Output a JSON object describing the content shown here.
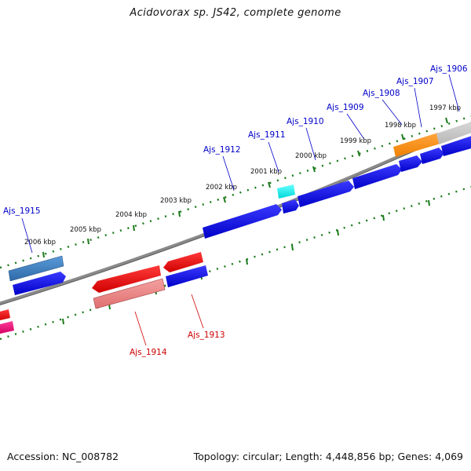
{
  "title": "Acidovorax sp. JS42, complete genome",
  "accession": "Accession: NC_008782",
  "topology": "Topology: circular; Length: 4,448,856 bp; Genes: 4,069",
  "kbp_labels": [
    {
      "text": "2006 kbp"
    },
    {
      "text": "2005 kbp"
    },
    {
      "text": "2004 kbp"
    },
    {
      "text": "2003 kbp"
    },
    {
      "text": "2002 kbp"
    },
    {
      "text": "2001 kbp"
    },
    {
      "text": "2000 kbp"
    },
    {
      "text": "1999 kbp"
    },
    {
      "text": "1998 kbp"
    },
    {
      "text": "1997 kbp"
    }
  ],
  "genes_forward": [
    "Ajs_1915",
    "Ajs_1912",
    "Ajs_1911",
    "Ajs_1910",
    "Ajs_1909",
    "Ajs_1908",
    "Ajs_1907",
    "Ajs_1906"
  ],
  "genes_reverse": [
    "Ajs_1914",
    "Ajs_1913"
  ],
  "colors": {
    "forward_gene": "#0000dd",
    "reverse_gene": "#ee0000",
    "pseudo_gene": "#ee8080",
    "steel_gene": "#3f7fbf",
    "cyan_gene": "#00eeee",
    "orange_gene": "#ff8c00",
    "magenta_gene": "#ee1077",
    "backbone": "#8a8a8a",
    "ticks": "#1a7a1a"
  }
}
